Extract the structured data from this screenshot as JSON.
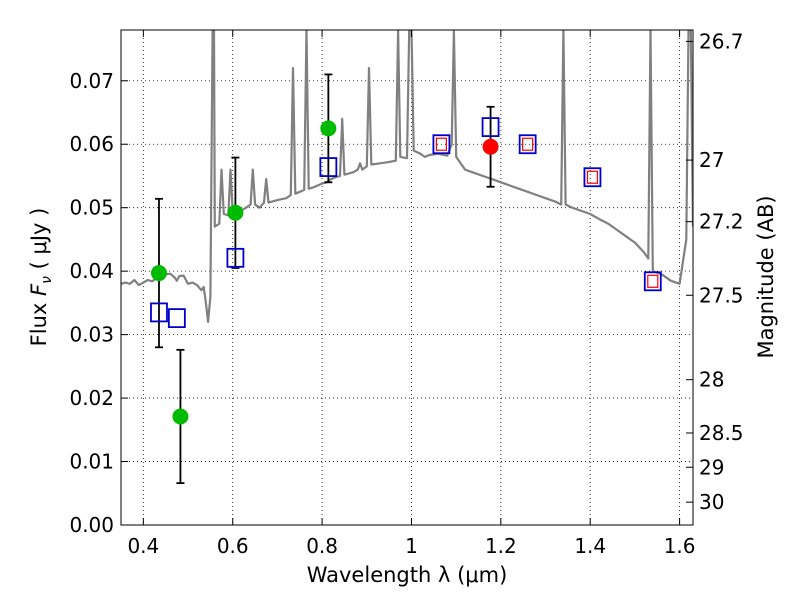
{
  "chart_data": {
    "type": "scatter",
    "xlabel": "Wavelength  λ (μm)",
    "ylabel_prefix": "Flux  ",
    "ylabel_symbol": "F",
    "ylabel_subscript": "ν",
    "ylabel_suffix": "  ( μJy )",
    "y2label": "Magnitude (AB)",
    "xlim": [
      0.35,
      1.63
    ],
    "ylim": [
      0.0,
      0.078
    ],
    "grid": true,
    "xticks": [
      {
        "value": 0.4,
        "label": "0.4"
      },
      {
        "value": 0.6,
        "label": "0.6"
      },
      {
        "value": 0.8,
        "label": "0.8"
      },
      {
        "value": 1.0,
        "label": "1"
      },
      {
        "value": 1.2,
        "label": "1.2"
      },
      {
        "value": 1.4,
        "label": "1.4"
      },
      {
        "value": 1.6,
        "label": "1.6"
      }
    ],
    "yticks": [
      {
        "value": 0.0,
        "label": "0.00"
      },
      {
        "value": 0.01,
        "label": "0.01"
      },
      {
        "value": 0.02,
        "label": "0.02"
      },
      {
        "value": 0.03,
        "label": "0.03"
      },
      {
        "value": 0.04,
        "label": "0.04"
      },
      {
        "value": 0.05,
        "label": "0.05"
      },
      {
        "value": 0.06,
        "label": "0.06"
      },
      {
        "value": 0.07,
        "label": "0.07"
      }
    ],
    "y2ticks": [
      {
        "flux": 0.0762,
        "label": "26.7"
      },
      {
        "flux": 0.0575,
        "label": "27"
      },
      {
        "flux": 0.0478,
        "label": "27.2"
      },
      {
        "flux": 0.0362,
        "label": "27.5"
      },
      {
        "flux": 0.0229,
        "label": "28"
      },
      {
        "flux": 0.0145,
        "label": "28.5"
      },
      {
        "flux": 0.0091,
        "label": "29"
      },
      {
        "flux": 0.0036,
        "label": "30"
      }
    ],
    "series": [
      {
        "kind": "model_spectrum",
        "color": "#808080",
        "points": [
          [
            0.35,
            0.038
          ],
          [
            0.36,
            0.0382
          ],
          [
            0.37,
            0.038
          ],
          [
            0.38,
            0.0386
          ],
          [
            0.39,
            0.0378
          ],
          [
            0.4,
            0.0382
          ],
          [
            0.41,
            0.0386
          ],
          [
            0.42,
            0.0384
          ],
          [
            0.43,
            0.039
          ],
          [
            0.44,
            0.0392
          ],
          [
            0.45,
            0.0395
          ],
          [
            0.46,
            0.0396
          ],
          [
            0.47,
            0.039
          ],
          [
            0.475,
            0.0385
          ],
          [
            0.48,
            0.0392
          ],
          [
            0.49,
            0.0393
          ],
          [
            0.5,
            0.038
          ],
          [
            0.51,
            0.0382
          ],
          [
            0.52,
            0.0378
          ],
          [
            0.53,
            0.037
          ],
          [
            0.535,
            0.0375
          ],
          [
            0.54,
            0.035
          ],
          [
            0.545,
            0.032
          ],
          [
            0.55,
            0.036
          ],
          [
            0.555,
            0.078
          ],
          [
            0.558,
            0.078
          ],
          [
            0.56,
            0.047
          ],
          [
            0.57,
            0.0475
          ],
          [
            0.575,
            0.056
          ],
          [
            0.58,
            0.049
          ],
          [
            0.59,
            0.0488
          ],
          [
            0.595,
            0.056
          ],
          [
            0.6,
            0.0492
          ],
          [
            0.62,
            0.0496
          ],
          [
            0.63,
            0.05
          ],
          [
            0.64,
            0.0505
          ],
          [
            0.645,
            0.056
          ],
          [
            0.65,
            0.0505
          ],
          [
            0.66,
            0.05
          ],
          [
            0.67,
            0.0508
          ],
          [
            0.675,
            0.0545
          ],
          [
            0.68,
            0.0508
          ],
          [
            0.7,
            0.0512
          ],
          [
            0.72,
            0.0515
          ],
          [
            0.73,
            0.052
          ],
          [
            0.735,
            0.072
          ],
          [
            0.74,
            0.0522
          ],
          [
            0.75,
            0.0525
          ],
          [
            0.76,
            0.0528
          ],
          [
            0.765,
            0.078
          ],
          [
            0.77,
            0.053
          ],
          [
            0.78,
            0.0532
          ],
          [
            0.79,
            0.0535
          ],
          [
            0.8,
            0.0538
          ],
          [
            0.81,
            0.054
          ],
          [
            0.82,
            0.0545
          ],
          [
            0.83,
            0.0548
          ],
          [
            0.84,
            0.055
          ],
          [
            0.845,
            0.064
          ],
          [
            0.85,
            0.0552
          ],
          [
            0.87,
            0.0556
          ],
          [
            0.88,
            0.056
          ],
          [
            0.885,
            0.057
          ],
          [
            0.89,
            0.056
          ],
          [
            0.9,
            0.0565
          ],
          [
            0.905,
            0.072
          ],
          [
            0.91,
            0.0568
          ],
          [
            0.93,
            0.057
          ],
          [
            0.95,
            0.0572
          ],
          [
            0.965,
            0.0574
          ],
          [
            0.97,
            0.078
          ],
          [
            0.975,
            0.058
          ],
          [
            0.99,
            0.0578
          ],
          [
            0.995,
            0.078
          ],
          [
            1.0,
            0.078
          ],
          [
            1.005,
            0.059
          ],
          [
            1.02,
            0.0585
          ],
          [
            1.03,
            0.058
          ],
          [
            1.04,
            0.0583
          ],
          [
            1.06,
            0.0585
          ],
          [
            1.08,
            0.0582
          ],
          [
            1.09,
            0.06
          ],
          [
            1.095,
            0.0778
          ],
          [
            1.1,
            0.058
          ],
          [
            1.12,
            0.056
          ],
          [
            1.14,
            0.0555
          ],
          [
            1.16,
            0.055
          ],
          [
            1.18,
            0.0545
          ],
          [
            1.2,
            0.054
          ],
          [
            1.22,
            0.0535
          ],
          [
            1.24,
            0.053
          ],
          [
            1.26,
            0.0525
          ],
          [
            1.28,
            0.052
          ],
          [
            1.3,
            0.0515
          ],
          [
            1.32,
            0.051
          ],
          [
            1.335,
            0.0505
          ],
          [
            1.34,
            0.078
          ],
          [
            1.345,
            0.0505
          ],
          [
            1.36,
            0.05
          ],
          [
            1.38,
            0.0495
          ],
          [
            1.4,
            0.049
          ],
          [
            1.42,
            0.0482
          ],
          [
            1.44,
            0.0475
          ],
          [
            1.46,
            0.0465
          ],
          [
            1.48,
            0.0455
          ],
          [
            1.5,
            0.0445
          ],
          [
            1.52,
            0.043
          ],
          [
            1.53,
            0.042
          ],
          [
            1.535,
            0.078
          ],
          [
            1.54,
            0.04
          ],
          [
            1.56,
            0.0395
          ],
          [
            1.58,
            0.0385
          ],
          [
            1.6,
            0.038
          ],
          [
            1.615,
            0.045
          ],
          [
            1.62,
            0.078
          ],
          [
            1.625,
            0.078
          ],
          [
            1.63,
            0.047
          ]
        ]
      },
      {
        "kind": "observed_flux",
        "color": "#00bb00",
        "points": [
          {
            "x": 0.435,
            "y": 0.0397,
            "err": 0.0117
          },
          {
            "x": 0.483,
            "y": 0.0171,
            "err": 0.0105
          },
          {
            "x": 0.606,
            "y": 0.0492,
            "err": 0.0087
          },
          {
            "x": 0.814,
            "y": 0.0625,
            "err": 0.0085
          }
        ]
      },
      {
        "kind": "observed_flux",
        "color": "#ff0000",
        "points": [
          {
            "x": 1.177,
            "y": 0.0596,
            "err": 0.0063
          }
        ]
      },
      {
        "kind": "model_band_flux",
        "color": "#0000cc",
        "points": [
          {
            "x": 0.435,
            "y": 0.0335
          },
          {
            "x": 0.475,
            "y": 0.0326
          },
          {
            "x": 0.606,
            "y": 0.0421
          },
          {
            "x": 0.814,
            "y": 0.0564
          },
          {
            "x": 1.067,
            "y": 0.06
          },
          {
            "x": 1.177,
            "y": 0.0627
          },
          {
            "x": 1.26,
            "y": 0.06
          },
          {
            "x": 1.405,
            "y": 0.0548
          },
          {
            "x": 1.54,
            "y": 0.0384
          }
        ]
      },
      {
        "kind": "model_band_flux_inner",
        "color": "#ff0000",
        "points": [
          {
            "x": 1.067,
            "y": 0.06
          },
          {
            "x": 1.26,
            "y": 0.06
          },
          {
            "x": 1.405,
            "y": 0.0548
          },
          {
            "x": 1.54,
            "y": 0.0384
          }
        ]
      }
    ]
  }
}
